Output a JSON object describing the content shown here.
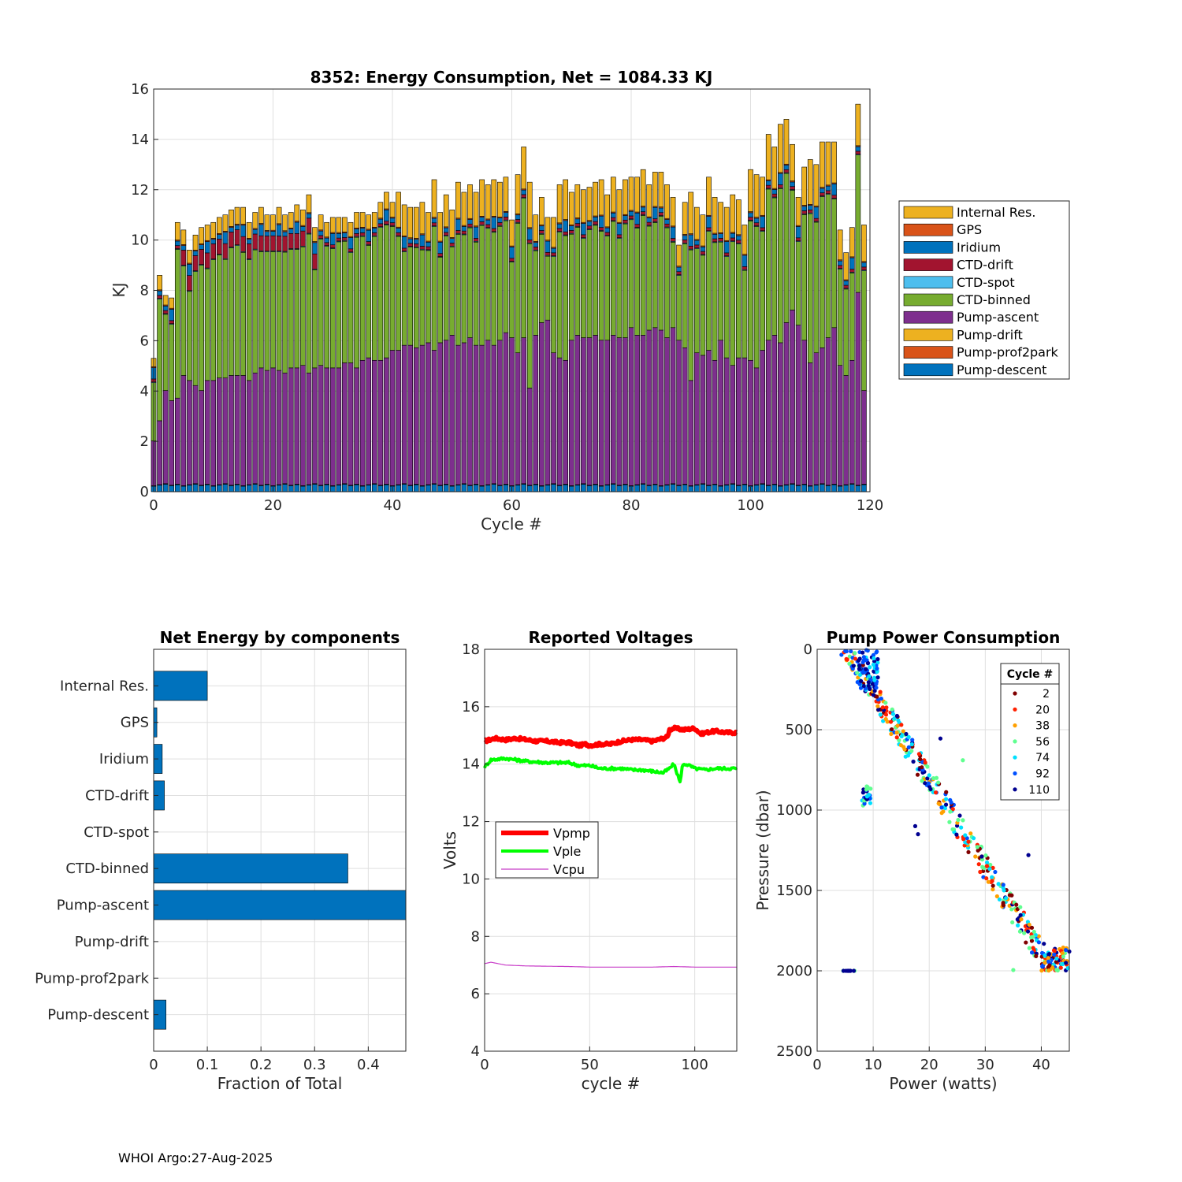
{
  "footer": "WHOI Argo:27-Aug-2025",
  "colors": {
    "components": [
      "#0072BD",
      "#D95319",
      "#EDB120",
      "#7E2F8E",
      "#77AC30",
      "#4DBEEE",
      "#A2142F",
      "#0072BD",
      "#D95319",
      "#EDB120"
    ],
    "barh": "#0072BD",
    "vpmp": "#FF0000",
    "vple": "#00FF00",
    "vcpu": "#C83CC8",
    "cycle_colors": [
      "#800000",
      "#FF2000",
      "#FFA000",
      "#60FF90",
      "#00E0FF",
      "#0050FF",
      "#000090"
    ]
  },
  "chart_data": [
    {
      "type": "bar",
      "stacked": true,
      "title": "8352: Energy Consumption,  Net = 1084.33 KJ",
      "xlabel": "Cycle #",
      "ylabel": "KJ",
      "xlim": [
        0,
        120
      ],
      "ylim": [
        0,
        16
      ],
      "xticks": [
        0,
        20,
        40,
        60,
        80,
        100,
        120
      ],
      "yticks": [
        0,
        2,
        4,
        6,
        8,
        10,
        12,
        14,
        16
      ],
      "components": [
        "Pump-descent",
        "Pump-prof2park",
        "Pump-drift",
        "Pump-ascent",
        "CTD-binned",
        "CTD-spot",
        "CTD-drift",
        "Iridium",
        "GPS",
        "Internal Res."
      ],
      "legend_order": [
        "Internal Res.",
        "GPS",
        "Iridium",
        "CTD-drift",
        "CTD-spot",
        "CTD-binned",
        "Pump-ascent",
        "Pump-drift",
        "Pump-prof2park",
        "Pump-descent"
      ],
      "legend_labels": [
        "Internal Res.",
        "GPS",
        "Iridium",
        "CTD-drift",
        "CTD-spot",
        "CTD-binned",
        "Pump-ascent",
        "Pump-drift",
        "Pump-prof2park",
        "Pump-descent"
      ],
      "legend_position": "outside-right",
      "cycles": [
        0,
        1,
        2,
        3,
        4,
        5,
        6,
        7,
        8,
        9,
        10,
        11,
        12,
        13,
        14,
        15,
        16,
        17,
        18,
        19,
        20,
        21,
        22,
        23,
        24,
        25,
        26,
        27,
        28,
        29,
        30,
        31,
        32,
        33,
        34,
        35,
        36,
        37,
        38,
        39,
        40,
        41,
        42,
        43,
        44,
        45,
        46,
        47,
        48,
        49,
        50,
        51,
        52,
        53,
        54,
        55,
        56,
        57,
        58,
        59,
        60,
        61,
        62,
        63,
        64,
        65,
        66,
        67,
        68,
        69,
        70,
        71,
        72,
        73,
        74,
        75,
        76,
        77,
        78,
        79,
        80,
        81,
        82,
        83,
        84,
        85,
        86,
        87,
        88,
        89,
        90,
        91,
        92,
        93,
        94,
        95,
        96,
        97,
        98,
        99,
        100,
        101,
        102,
        103,
        104,
        105,
        106,
        107,
        108,
        109,
        110,
        111,
        112,
        113,
        114,
        115,
        116,
        117,
        118,
        119
      ],
      "series_values": {
        "Pump-ascent": [
          2.0,
          2.8,
          4.0,
          3.6,
          3.7,
          4.6,
          4.4,
          4.2,
          4.0,
          4.4,
          4.4,
          4.5,
          4.5,
          4.6,
          4.6,
          4.6,
          4.4,
          4.7,
          4.9,
          4.8,
          4.9,
          4.8,
          4.7,
          4.9,
          4.9,
          5.0,
          4.7,
          4.9,
          5.0,
          4.9,
          4.9,
          4.9,
          5.1,
          5.1,
          4.9,
          5.2,
          5.3,
          5.2,
          5.2,
          5.3,
          5.6,
          5.6,
          5.8,
          5.8,
          5.7,
          5.8,
          5.9,
          5.6,
          5.9,
          6.0,
          6.2,
          5.8,
          5.9,
          6.1,
          5.8,
          5.8,
          6.0,
          5.8,
          6.0,
          6.3,
          6.1,
          5.5,
          6.1,
          4.1,
          6.2,
          6.7,
          6.8,
          5.5,
          5.3,
          5.2,
          6.0,
          6.2,
          6.1,
          6.1,
          6.2,
          6.0,
          6.0,
          6.2,
          6.1,
          6.1,
          6.5,
          6.2,
          6.2,
          6.4,
          6.5,
          6.4,
          6.1,
          6.5,
          6.0,
          5.7,
          4.4,
          5.5,
          5.4,
          5.6,
          5.2,
          6.0,
          5.3,
          5.0,
          5.3,
          5.3,
          5.2,
          4.9,
          5.6,
          6.0,
          6.2,
          5.9,
          6.7,
          7.2,
          6.6,
          6.0,
          5.1,
          5.5,
          5.7,
          6.1,
          6.5,
          5.0,
          4.6,
          5.2,
          7.9,
          4.0
        ]
      },
      "totals": [
        5.3,
        8.6,
        7.8,
        7.7,
        10.7,
        10.4,
        9.6,
        10.2,
        10.5,
        10.6,
        10.7,
        10.9,
        11.0,
        11.2,
        11.3,
        11.3,
        10.7,
        11.1,
        11.3,
        11.0,
        11.0,
        11.3,
        11.0,
        11.1,
        11.4,
        11.2,
        11.8,
        10.5,
        11.0,
        10.7,
        10.9,
        10.9,
        10.9,
        10.7,
        11.1,
        11.1,
        11.0,
        11.1,
        11.5,
        11.9,
        11.5,
        11.9,
        11.4,
        11.3,
        11.3,
        11.5,
        11.1,
        12.4,
        11.1,
        11.8,
        11.2,
        12.3,
        11.9,
        12.2,
        11.9,
        12.4,
        12.2,
        12.4,
        12.3,
        12.5,
        10.8,
        12.6,
        13.7,
        12.3,
        11.0,
        11.7,
        10.9,
        10.9,
        12.2,
        12.4,
        11.9,
        12.2,
        12.0,
        12.1,
        12.3,
        12.4,
        11.8,
        12.5,
        12.0,
        12.4,
        12.5,
        12.5,
        12.8,
        12.2,
        12.7,
        12.7,
        12.2,
        11.7,
        9.8,
        11.5,
        11.9,
        11.3,
        11.0,
        12.5,
        11.7,
        11.5,
        11.3,
        11.8,
        11.6,
        10.6,
        12.8,
        12.6,
        12.5,
        14.2,
        13.7,
        14.6,
        14.8,
        13.8,
        11.7,
        12.9,
        13.2,
        13.0,
        13.9,
        13.9,
        13.9,
        10.4,
        9.5,
        10.5,
        15.4,
        10.6
      ]
    },
    {
      "type": "barh",
      "title": "Net Energy by components",
      "xlabel": "Fraction of Total",
      "xlim": [
        0,
        0.47
      ],
      "xticks": [
        0,
        0.1,
        0.2,
        0.3,
        0.4
      ],
      "xtick_labels": [
        "0",
        "0.1",
        "0.2",
        "0.3",
        "0.4"
      ],
      "categories": [
        "Internal Res.",
        "GPS",
        "Iridium",
        "CTD-drift",
        "CTD-spot",
        "CTD-binned",
        "Pump-ascent",
        "Pump-drift",
        "Pump-prof2park",
        "Pump-descent"
      ],
      "values": [
        0.1,
        0.006,
        0.016,
        0.02,
        0.0,
        0.362,
        0.48,
        0.0,
        0.0,
        0.023
      ]
    },
    {
      "type": "line",
      "title": "Reported Voltages",
      "xlabel": "cycle #",
      "ylabel": "Volts",
      "xlim": [
        0,
        120
      ],
      "ylim": [
        4,
        18
      ],
      "xticks": [
        0,
        50,
        100
      ],
      "yticks": [
        4,
        6,
        8,
        10,
        12,
        14,
        16,
        18
      ],
      "legend_position": "middle-left",
      "series": [
        {
          "name": "Vpmp",
          "x": [
            0,
            5,
            10,
            15,
            20,
            25,
            30,
            35,
            40,
            45,
            48,
            50,
            55,
            60,
            65,
            70,
            75,
            80,
            85,
            87,
            88,
            90,
            95,
            100,
            103,
            105,
            110,
            115,
            120
          ],
          "values": [
            14.8,
            14.9,
            14.85,
            14.9,
            14.85,
            14.8,
            14.8,
            14.75,
            14.75,
            14.65,
            14.7,
            14.65,
            14.7,
            14.7,
            14.8,
            14.85,
            14.85,
            14.8,
            14.9,
            14.95,
            15.2,
            15.25,
            15.2,
            15.25,
            15.05,
            15.1,
            15.15,
            15.1,
            15.1
          ]
        },
        {
          "name": "Vple",
          "x": [
            0,
            3,
            10,
            20,
            30,
            40,
            45,
            50,
            55,
            60,
            65,
            70,
            75,
            80,
            85,
            88,
            90,
            92,
            93,
            94,
            95,
            96,
            100,
            105,
            110,
            115,
            120
          ],
          "values": [
            13.9,
            14.15,
            14.2,
            14.1,
            14.05,
            14.05,
            13.95,
            13.95,
            13.85,
            13.85,
            13.85,
            13.8,
            13.8,
            13.75,
            13.7,
            13.85,
            14.0,
            13.6,
            13.35,
            13.9,
            14.0,
            14.0,
            13.85,
            13.8,
            13.85,
            13.85,
            13.85
          ]
        },
        {
          "name": "Vcpu",
          "x": [
            0,
            3,
            10,
            20,
            30,
            40,
            50,
            60,
            70,
            80,
            90,
            100,
            110,
            120
          ],
          "values": [
            7.05,
            7.1,
            7.0,
            6.97,
            6.96,
            6.95,
            6.93,
            6.93,
            6.93,
            6.93,
            6.95,
            6.93,
            6.93,
            6.93
          ]
        }
      ]
    },
    {
      "type": "scatter",
      "title": "Pump Power Consumption",
      "xlabel": "Power (watts)",
      "ylabel": "Pressure (dbar)",
      "xlim": [
        0,
        45
      ],
      "ylim": [
        0,
        2500
      ],
      "y_reversed": true,
      "xticks": [
        0,
        10,
        20,
        30,
        40
      ],
      "yticks": [
        0,
        500,
        1000,
        1500,
        2000,
        2500
      ],
      "legend_title": "Cycle #",
      "legend_position": "top-right",
      "legend_entries": [
        "2",
        "20",
        "38",
        "56",
        "74",
        "92",
        "110"
      ],
      "clusters": [
        {
          "power": 5,
          "pressure": 0
        },
        {
          "power": 9,
          "pressure": 120
        },
        {
          "power": 13,
          "pressure": 400
        },
        {
          "power": 17,
          "pressure": 600
        },
        {
          "power": 21,
          "pressure": 850
        },
        {
          "power": 25,
          "pressure": 1050
        },
        {
          "power": 30,
          "pressure": 1350
        },
        {
          "power": 35,
          "pressure": 1600
        },
        {
          "power": 40,
          "pressure": 1850
        },
        {
          "power": 43,
          "pressure": 1990
        },
        {
          "power": 8.5,
          "pressure": 950
        },
        {
          "power": 6,
          "pressure": 2000
        }
      ]
    }
  ]
}
